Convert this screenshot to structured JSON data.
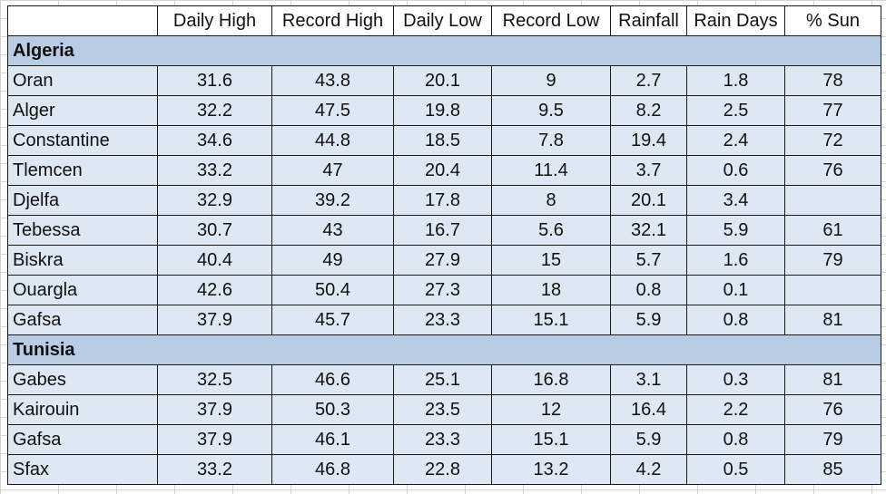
{
  "columns": [
    "Daily High",
    "Record High",
    "Daily Low",
    "Record Low",
    "Rainfall",
    "Rain Days",
    "% Sun"
  ],
  "groups": [
    {
      "name": "Algeria",
      "rows": [
        {
          "city": "Oran",
          "values": [
            "31.6",
            "43.8",
            "20.1",
            "9",
            "2.7",
            "1.8",
            "78"
          ]
        },
        {
          "city": "Alger",
          "values": [
            "32.2",
            "47.5",
            "19.8",
            "9.5",
            "8.2",
            "2.5",
            "77"
          ]
        },
        {
          "city": "Constantine",
          "values": [
            "34.6",
            "44.8",
            "18.5",
            "7.8",
            "19.4",
            "2.4",
            "72"
          ]
        },
        {
          "city": "Tlemcen",
          "values": [
            "33.2",
            "47",
            "20.4",
            "11.4",
            "3.7",
            "0.6",
            "76"
          ]
        },
        {
          "city": "Djelfa",
          "values": [
            "32.9",
            "39.2",
            "17.8",
            "8",
            "20.1",
            "3.4",
            ""
          ]
        },
        {
          "city": "Tebessa",
          "values": [
            "30.7",
            "43",
            "16.7",
            "5.6",
            "32.1",
            "5.9",
            "61"
          ]
        },
        {
          "city": "Biskra",
          "values": [
            "40.4",
            "49",
            "27.9",
            "15",
            "5.7",
            "1.6",
            "79"
          ]
        },
        {
          "city": "Ouargla",
          "values": [
            "42.6",
            "50.4",
            "27.3",
            "18",
            "0.8",
            "0.1",
            ""
          ]
        },
        {
          "city": "Gafsa",
          "values": [
            "37.9",
            "45.7",
            "23.3",
            "15.1",
            "5.9",
            "0.8",
            "81"
          ]
        }
      ]
    },
    {
      "name": "Tunisia",
      "rows": [
        {
          "city": "Gabes",
          "values": [
            "32.5",
            "46.6",
            "25.1",
            "16.8",
            "3.1",
            "0.3",
            "81"
          ]
        },
        {
          "city": "Kairouin",
          "values": [
            "37.9",
            "50.3",
            "23.5",
            "12",
            "16.4",
            "2.2",
            "76"
          ]
        },
        {
          "city": "Gafsa",
          "values": [
            "37.9",
            "46.1",
            "23.3",
            "15.1",
            "5.9",
            "0.8",
            "79"
          ]
        },
        {
          "city": "Sfax",
          "values": [
            "33.2",
            "46.8",
            "22.8",
            "13.2",
            "4.2",
            "0.5",
            "85"
          ]
        }
      ]
    }
  ],
  "colors": {
    "header_bg": "#ffffff",
    "group_bg": "#b8cce4",
    "row_bg": "#dde8f4",
    "border": "#1a1a1a",
    "gridline": "#d4d4d4"
  }
}
